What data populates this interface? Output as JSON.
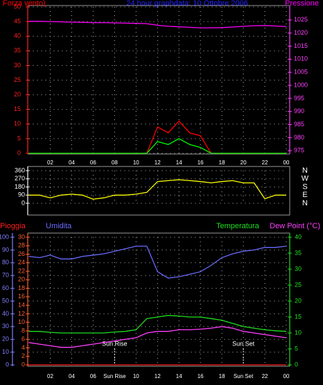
{
  "chart_data": [
    {
      "type": "line",
      "title": "24 hour graphdata: 10 Ottobre 2006",
      "x": [
        0,
        1,
        2,
        3,
        4,
        5,
        6,
        7,
        8,
        9,
        10,
        11,
        12,
        13,
        14,
        15,
        16,
        17,
        18,
        19,
        20,
        21,
        22,
        23,
        24
      ],
      "xlim": [
        0,
        24
      ],
      "xticks": [
        {
          "value": 2,
          "label": "02"
        },
        {
          "value": 4,
          "label": "04"
        },
        {
          "value": 6,
          "label": "06"
        },
        {
          "value": 8,
          "label": "08"
        },
        {
          "value": 10,
          "label": "10"
        },
        12,
        14,
        16,
        18,
        20,
        22,
        {
          "value": 24,
          "label": "00"
        }
      ],
      "ylim": [
        0,
        50
      ],
      "yticks": [
        0,
        5,
        10,
        15,
        20,
        25,
        30,
        35,
        40,
        45,
        50
      ],
      "y2lim": [
        974,
        1030
      ],
      "y2ticks": [
        975,
        980,
        985,
        990,
        995,
        1000,
        1005,
        1010,
        1015,
        1020,
        1025
      ],
      "grid": true,
      "series": [
        {
          "name": "Forza vento)",
          "color": "#ff0000",
          "values": [
            0,
            0,
            0,
            0,
            0,
            0,
            0,
            0,
            0,
            0,
            0,
            0,
            9,
            7,
            11,
            7,
            6,
            0,
            0,
            0,
            0,
            0,
            0,
            0,
            0
          ]
        },
        {
          "color": "#00ff00",
          "values": [
            0,
            0,
            0,
            0,
            0,
            0,
            0,
            0,
            0,
            0,
            0,
            0,
            4,
            3,
            5,
            3,
            2,
            0,
            0,
            0,
            0,
            0,
            0,
            0,
            0
          ]
        },
        {
          "name": "Pressione",
          "color": "#ff00ff",
          "axis": "y2",
          "values": [
            1024.5,
            1024.5,
            1024.4,
            1024.3,
            1024.2,
            1024.1,
            1024,
            1024,
            1023.9,
            1023.8,
            1023.7,
            1023.6,
            1023,
            1022.6,
            1022.4,
            1022.2,
            1022,
            1022,
            1022.1,
            1022.3,
            1022.6,
            1022.8,
            1022.9,
            1022.7,
            1022.5
          ]
        }
      ]
    },
    {
      "type": "line",
      "x": [
        0,
        1,
        2,
        3,
        4,
        5,
        6,
        7,
        8,
        9,
        10,
        11,
        12,
        13,
        14,
        15,
        16,
        17,
        18,
        19,
        20,
        21,
        22,
        23,
        24
      ],
      "xlim": [
        0,
        24
      ],
      "ylim": [
        0,
        360
      ],
      "yticks": [
        0,
        90,
        180,
        270,
        360
      ],
      "y2lim": [
        0,
        360
      ],
      "y2ticks": [
        {
          "value": 360,
          "label": "N"
        },
        {
          "value": 270,
          "label": "W"
        },
        {
          "value": 180,
          "label": "S"
        },
        {
          "value": 90,
          "label": "E"
        },
        {
          "value": 0,
          "label": "N"
        }
      ],
      "grid": true,
      "series": [
        {
          "color": "#ffff00",
          "values": [
            90,
            90,
            60,
            90,
            100,
            90,
            45,
            60,
            90,
            90,
            100,
            120,
            240,
            250,
            260,
            250,
            240,
            225,
            240,
            250,
            225,
            225,
            50,
            90,
            90
          ]
        }
      ]
    },
    {
      "type": "line",
      "x": [
        0,
        1,
        2,
        3,
        4,
        5,
        6,
        7,
        8,
        9,
        10,
        11,
        12,
        13,
        14,
        15,
        16,
        17,
        18,
        19,
        20,
        21,
        22,
        23,
        24
      ],
      "xlim": [
        0,
        24
      ],
      "xticks": [
        {
          "value": 2,
          "label": "02"
        },
        {
          "value": 4,
          "label": "04"
        },
        {
          "value": 6,
          "label": "06"
        },
        {
          "value": 8,
          "label": "Sun Rise"
        },
        {
          "value": 10,
          "label": "10"
        },
        12,
        14,
        16,
        18,
        {
          "value": 20,
          "label": "Sun Set"
        },
        22,
        {
          "value": 24,
          "label": "00"
        }
      ],
      "ylim": [
        0,
        100
      ],
      "yticks": [
        0,
        10,
        20,
        30,
        40,
        50,
        60,
        70,
        80,
        90,
        100
      ],
      "y3lim": [
        0,
        30
      ],
      "y3ticks": [
        0,
        2,
        4,
        6,
        8,
        10,
        12,
        14,
        16,
        18,
        20,
        22,
        24,
        26,
        28,
        30
      ],
      "y2lim": [
        0,
        40
      ],
      "y2ticks": [
        0,
        5,
        10,
        15,
        20,
        25,
        30,
        35,
        40
      ],
      "grid": true,
      "annotations": [
        {
          "text": "Sun Rise",
          "x": 8
        },
        {
          "text": "Sun Set",
          "x": 20
        }
      ],
      "series": [
        {
          "name": "Umidita",
          "color": "#6a6aff",
          "values": [
            85,
            84,
            86,
            83,
            83,
            85,
            86,
            87,
            89,
            91,
            93,
            93,
            73,
            68,
            69,
            71,
            73,
            78,
            84,
            87,
            89,
            90,
            92,
            92,
            93
          ]
        },
        {
          "name": "Pioggia",
          "color": "#ff2020",
          "axis": "y3",
          "values": [
            0,
            0,
            0,
            0,
            0,
            0,
            0,
            0,
            0,
            0,
            0,
            0,
            0,
            0,
            0,
            0,
            0,
            0,
            0,
            0,
            0,
            0,
            0,
            0,
            0
          ]
        },
        {
          "name": "Temperatura",
          "color": "#20e020",
          "axis": "y2",
          "values": [
            10.5,
            10.5,
            10.2,
            10,
            10,
            10,
            10,
            10,
            10.3,
            10.5,
            11,
            14.5,
            15,
            15.5,
            15.3,
            15,
            15,
            14.5,
            14,
            13,
            12,
            11.5,
            11,
            10.7,
            10.5
          ]
        },
        {
          "name": "Dew Point (°C)",
          "color": "#ff40ff",
          "axis": "y2",
          "values": [
            7,
            6.5,
            6,
            5.5,
            5.5,
            6,
            6.5,
            7,
            7.5,
            8,
            8.5,
            10,
            10.5,
            10.5,
            11,
            11,
            11.2,
            11.5,
            12,
            11.5,
            10.5,
            10,
            9.5,
            9,
            8.5
          ]
        }
      ]
    }
  ]
}
